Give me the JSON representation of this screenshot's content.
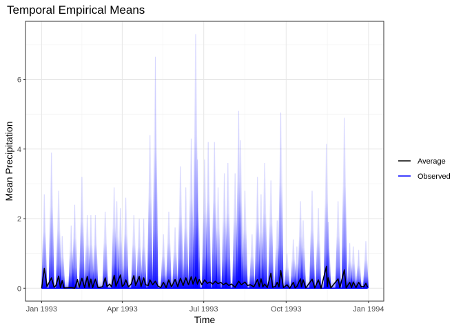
{
  "chart_data": {
    "type": "line",
    "title": "Temporal Empirical Means",
    "xlabel": "Time",
    "ylabel": "Mean Precipitation",
    "xlim": [
      "1992-12-14",
      "1994-01-18"
    ],
    "ylim": [
      -0.37,
      7.67
    ],
    "x_ticks": [
      {
        "date": "1993-01-01",
        "label": "Jan 1993"
      },
      {
        "date": "1993-04-01",
        "label": "Apr 1993"
      },
      {
        "date": "1993-07-01",
        "label": "Jul 1993"
      },
      {
        "date": "1993-10-01",
        "label": "Oct 1993"
      },
      {
        "date": "1994-01-01",
        "label": "Jan 1994"
      }
    ],
    "y_ticks": [
      0,
      2,
      4,
      6
    ],
    "grid": true,
    "legend": {
      "placement": "right",
      "entries": [
        {
          "name": "Average",
          "color": "#000000"
        },
        {
          "name": "Observed",
          "color": "#0000ff"
        }
      ]
    },
    "series": [
      {
        "name": "Average",
        "color": "#000000",
        "points": [
          [
            "1993-01-01",
            0.0
          ],
          [
            "1993-01-04",
            0.57
          ],
          [
            "1993-01-07",
            0.05
          ],
          [
            "1993-01-09",
            0.15
          ],
          [
            "1993-01-12",
            0.3
          ],
          [
            "1993-01-15",
            0.03
          ],
          [
            "1993-01-17",
            0.08
          ],
          [
            "1993-01-20",
            0.35
          ],
          [
            "1993-01-22",
            0.02
          ],
          [
            "1993-01-24",
            0.22
          ],
          [
            "1993-01-26",
            0.01
          ],
          [
            "1993-02-03",
            0.02
          ],
          [
            "1993-02-07",
            0.0
          ],
          [
            "1993-02-10",
            0.25
          ],
          [
            "1993-02-12",
            0.03
          ],
          [
            "1993-02-15",
            0.29
          ],
          [
            "1993-02-18",
            0.02
          ],
          [
            "1993-02-21",
            0.34
          ],
          [
            "1993-02-23",
            0.03
          ],
          [
            "1993-02-25",
            0.26
          ],
          [
            "1993-02-27",
            0.02
          ],
          [
            "1993-03-02",
            0.26
          ],
          [
            "1993-03-05",
            0.02
          ],
          [
            "1993-03-10",
            0.04
          ],
          [
            "1993-03-13",
            0.3
          ],
          [
            "1993-03-15",
            0.05
          ],
          [
            "1993-03-18",
            0.12
          ],
          [
            "1993-03-20",
            0.04
          ],
          [
            "1993-03-23",
            0.37
          ],
          [
            "1993-03-25",
            0.06
          ],
          [
            "1993-03-30",
            0.38
          ],
          [
            "1993-04-01",
            0.05
          ],
          [
            "1993-04-03",
            0.1
          ],
          [
            "1993-04-05",
            0.24
          ],
          [
            "1993-04-08",
            0.04
          ],
          [
            "1993-04-11",
            0.12
          ],
          [
            "1993-04-14",
            0.36
          ],
          [
            "1993-04-16",
            0.08
          ],
          [
            "1993-04-20",
            0.34
          ],
          [
            "1993-04-22",
            0.05
          ],
          [
            "1993-04-25",
            0.3
          ],
          [
            "1993-04-27",
            0.1
          ],
          [
            "1993-04-30",
            0.08
          ],
          [
            "1993-05-02",
            0.24
          ],
          [
            "1993-05-05",
            0.1
          ],
          [
            "1993-05-08",
            0.2
          ],
          [
            "1993-05-11",
            0.06
          ],
          [
            "1993-05-14",
            0.02
          ],
          [
            "1993-05-17",
            0.17
          ],
          [
            "1993-05-20",
            0.02
          ],
          [
            "1993-05-23",
            0.24
          ],
          [
            "1993-05-26",
            0.04
          ],
          [
            "1993-05-30",
            0.25
          ],
          [
            "1993-06-02",
            0.05
          ],
          [
            "1993-06-05",
            0.29
          ],
          [
            "1993-06-08",
            0.08
          ],
          [
            "1993-06-11",
            0.3
          ],
          [
            "1993-06-14",
            0.1
          ],
          [
            "1993-06-17",
            0.33
          ],
          [
            "1993-06-19",
            0.12
          ],
          [
            "1993-06-22",
            0.32
          ],
          [
            "1993-06-24",
            0.12
          ],
          [
            "1993-06-26",
            0.25
          ],
          [
            "1993-06-29",
            0.1
          ],
          [
            "1993-07-02",
            0.24
          ],
          [
            "1993-07-05",
            0.14
          ],
          [
            "1993-07-08",
            0.18
          ],
          [
            "1993-07-11",
            0.12
          ],
          [
            "1993-07-14",
            0.2
          ],
          [
            "1993-07-17",
            0.13
          ],
          [
            "1993-07-20",
            0.17
          ],
          [
            "1993-07-23",
            0.1
          ],
          [
            "1993-07-26",
            0.15
          ],
          [
            "1993-07-29",
            0.08
          ],
          [
            "1993-08-01",
            0.12
          ],
          [
            "1993-08-05",
            0.03
          ],
          [
            "1993-08-09",
            0.2
          ],
          [
            "1993-08-12",
            0.1
          ],
          [
            "1993-08-16",
            0.18
          ],
          [
            "1993-08-19",
            0.08
          ],
          [
            "1993-08-22",
            0.1
          ],
          [
            "1993-08-26",
            0.04
          ],
          [
            "1993-08-30",
            0.25
          ],
          [
            "1993-09-01",
            0.05
          ],
          [
            "1993-09-03",
            0.27
          ],
          [
            "1993-09-05",
            0.04
          ],
          [
            "1993-09-07",
            0.12
          ],
          [
            "1993-09-10",
            0.02
          ],
          [
            "1993-09-14",
            0.43
          ],
          [
            "1993-09-16",
            0.03
          ],
          [
            "1993-09-19",
            0.05
          ],
          [
            "1993-09-21",
            0.17
          ],
          [
            "1993-09-23",
            0.04
          ],
          [
            "1993-09-25",
            0.51
          ],
          [
            "1993-09-28",
            0.02
          ],
          [
            "1993-10-02",
            0.1
          ],
          [
            "1993-10-05",
            0.0
          ],
          [
            "1993-10-09",
            0.17
          ],
          [
            "1993-10-11",
            0.01
          ],
          [
            "1993-10-13",
            0.05
          ],
          [
            "1993-10-17",
            0.27
          ],
          [
            "1993-10-18",
            0.04
          ],
          [
            "1993-10-20",
            0.24
          ],
          [
            "1993-10-23",
            0.01
          ],
          [
            "1993-10-30",
            0.26
          ],
          [
            "1993-11-02",
            0.01
          ],
          [
            "1993-11-06",
            0.24
          ],
          [
            "1993-11-09",
            0.0
          ],
          [
            "1993-11-15",
            0.63
          ],
          [
            "1993-11-16",
            0.05
          ],
          [
            "1993-11-17",
            0.3
          ],
          [
            "1993-11-20",
            0.01
          ],
          [
            "1993-11-28",
            0.27
          ],
          [
            "1993-11-30",
            0.02
          ],
          [
            "1993-12-05",
            0.53
          ],
          [
            "1993-12-07",
            0.01
          ],
          [
            "1993-12-11",
            0.17
          ],
          [
            "1993-12-13",
            0.02
          ],
          [
            "1993-12-15",
            0.18
          ],
          [
            "1993-12-18",
            0.02
          ],
          [
            "1993-12-21",
            0.17
          ],
          [
            "1993-12-24",
            0.04
          ],
          [
            "1993-12-27",
            0.05
          ],
          [
            "1993-12-29",
            0.14
          ],
          [
            "1993-12-31",
            0.03
          ]
        ]
      },
      {
        "name": "Observed",
        "color": "#0000ff",
        "description_of_values": "daily maxima across observed series",
        "peaks": [
          [
            "1993-01-04",
            2.7
          ],
          [
            "1993-01-12",
            3.9
          ],
          [
            "1993-01-20",
            2.8
          ],
          [
            "1993-01-24",
            1.5
          ],
          [
            "1993-02-03",
            1.8
          ],
          [
            "1993-02-07",
            2.4
          ],
          [
            "1993-02-15",
            3.2
          ],
          [
            "1993-02-21",
            2.1
          ],
          [
            "1993-02-25",
            2.1
          ],
          [
            "1993-03-02",
            2.1
          ],
          [
            "1993-03-13",
            2.2
          ],
          [
            "1993-03-23",
            2.9
          ],
          [
            "1993-03-26",
            2.5
          ],
          [
            "1993-03-30",
            2.3
          ],
          [
            "1993-04-05",
            2.6
          ],
          [
            "1993-04-14",
            2.1
          ],
          [
            "1993-04-20",
            2.0
          ],
          [
            "1993-04-25",
            2.0
          ],
          [
            "1993-05-02",
            4.4
          ],
          [
            "1993-05-08",
            6.65
          ],
          [
            "1993-05-17",
            1.55
          ],
          [
            "1993-05-23",
            2.2
          ],
          [
            "1993-05-30",
            1.75
          ],
          [
            "1993-06-05",
            3.5
          ],
          [
            "1993-06-11",
            2.9
          ],
          [
            "1993-06-17",
            4.3
          ],
          [
            "1993-06-22",
            7.3
          ],
          [
            "1993-06-24",
            3.7
          ],
          [
            "1993-07-02",
            3.7
          ],
          [
            "1993-07-06",
            4.2
          ],
          [
            "1993-07-13",
            4.2
          ],
          [
            "1993-07-17",
            2.9
          ],
          [
            "1993-07-24",
            3.3
          ],
          [
            "1993-07-28",
            3.6
          ],
          [
            "1993-08-05",
            3.3
          ],
          [
            "1993-08-09",
            5.1
          ],
          [
            "1993-08-11",
            4.25
          ],
          [
            "1993-08-16",
            2.8
          ],
          [
            "1993-08-24",
            1.55
          ],
          [
            "1993-08-30",
            3.2
          ],
          [
            "1993-09-03",
            2.7
          ],
          [
            "1993-09-07",
            3.6
          ],
          [
            "1993-09-14",
            3.1
          ],
          [
            "1993-09-21",
            1.95
          ],
          [
            "1993-09-25",
            5.05
          ],
          [
            "1993-10-02",
            1.0
          ],
          [
            "1993-10-09",
            1.4
          ],
          [
            "1993-10-13",
            1.2
          ],
          [
            "1993-10-17",
            2.5
          ],
          [
            "1993-10-20",
            1.95
          ],
          [
            "1993-10-30",
            2.8
          ],
          [
            "1993-11-06",
            2.3
          ],
          [
            "1993-11-15",
            4.15
          ],
          [
            "1993-11-17",
            1.9
          ],
          [
            "1993-11-28",
            2.5
          ],
          [
            "1993-12-05",
            4.9
          ],
          [
            "1993-12-11",
            1.3
          ],
          [
            "1993-12-15",
            1.2
          ],
          [
            "1993-12-21",
            1.1
          ],
          [
            "1993-12-29",
            1.35
          ]
        ]
      }
    ]
  }
}
